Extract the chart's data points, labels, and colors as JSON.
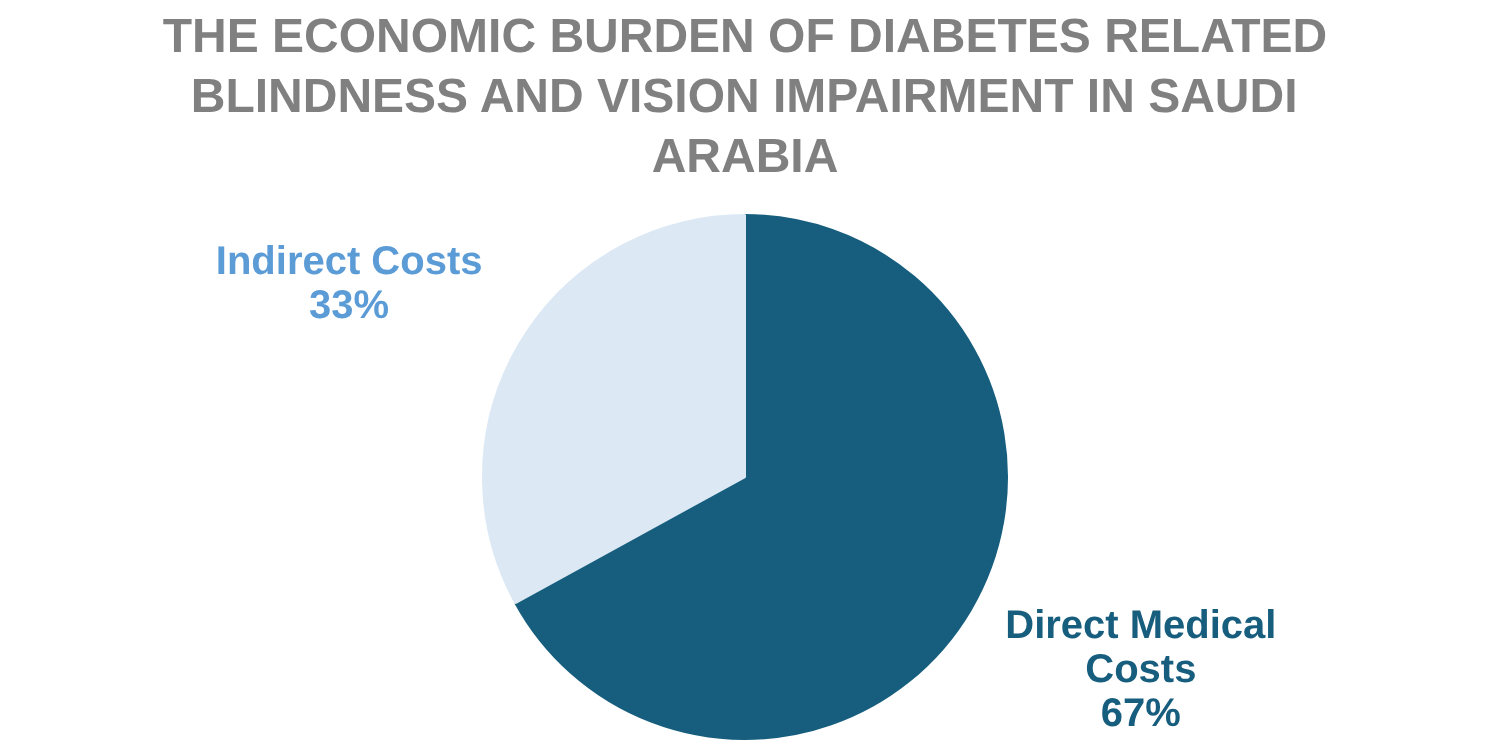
{
  "chart_data": {
    "type": "pie",
    "title": "THE ECONOMIC BURDEN OF DIABETES RELATED BLINDNESS AND VISION IMPAIRMENT IN SAUDI ARABIA",
    "categories": [
      "Direct Medical Costs",
      "Indirect Costs"
    ],
    "values": [
      67,
      33
    ],
    "colors": [
      "#175e7e",
      "#dce9f5"
    ],
    "value_labels": [
      "67%",
      "33%"
    ]
  }
}
